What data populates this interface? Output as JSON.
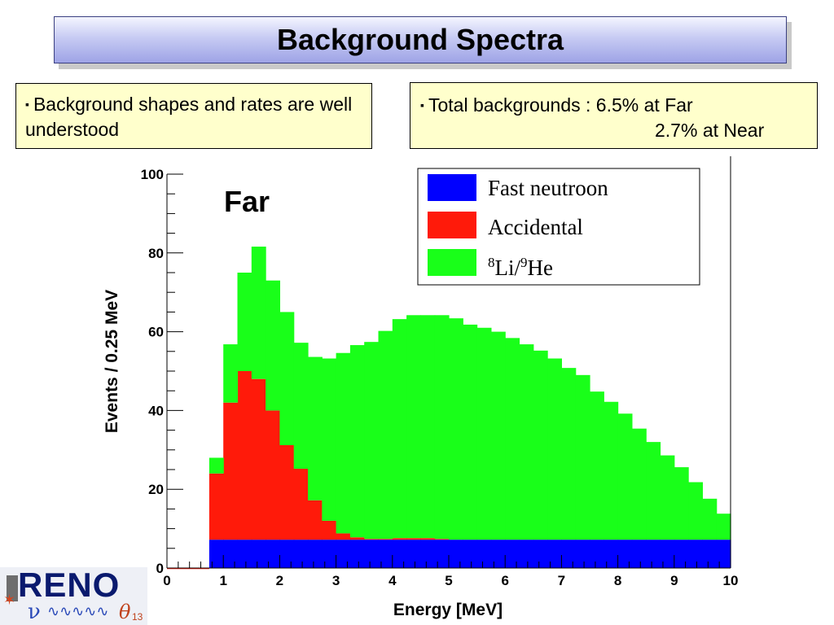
{
  "slide": {
    "title": "Background Spectra",
    "bullet_left": "Background shapes and rates are well understood",
    "bullet_right_line1": "Total backgrounds :   6.5% at Far",
    "bullet_right_line2": "2.7% at Near",
    "bullet_glyph": "▪"
  },
  "logo": {
    "text": "RENO",
    "nu": "ν",
    "wave": "∿∿∿∿∿",
    "theta": "θ",
    "theta_sub": "13"
  },
  "colors": {
    "fast_neutron": "#0000ff",
    "accidental": "#ff1a0a",
    "li9he": "#19ff19",
    "title_bar_top": "#f4f5ff",
    "title_bar_bottom": "#9ea3e6",
    "note_bg": "#ffffcc"
  },
  "chart_data": {
    "type": "area",
    "stacked": true,
    "panel_label": "Far",
    "xlabel": "Energy [MeV]",
    "ylabel": "Events / 0.25 MeV",
    "xlim": [
      0,
      10
    ],
    "ylim": [
      0,
      100
    ],
    "xticks": [
      0,
      1,
      2,
      3,
      4,
      5,
      6,
      7,
      8,
      9,
      10
    ],
    "yticks": [
      0,
      20,
      40,
      60,
      80,
      100
    ],
    "bin_width": 0.25,
    "bin_edges_start": 0.75,
    "legend_position": "top-right",
    "series": [
      {
        "name": "Fast neutroon",
        "legend_label": "Fast neutroon",
        "color": "#0000ff",
        "values": [
          7.2,
          7.2,
          7.2,
          7.2,
          7.2,
          7.2,
          7.2,
          7.2,
          7.2,
          7.2,
          7.2,
          7.2,
          7.2,
          7.2,
          7.2,
          7.2,
          7.2,
          7.2,
          7.2,
          7.2,
          7.2,
          7.2,
          7.2,
          7.2,
          7.2,
          7.2,
          7.2,
          7.2,
          7.2,
          7.2,
          7.2,
          7.2,
          7.2,
          7.2,
          7.2,
          7.2,
          7.2
        ]
      },
      {
        "name": "Accidental",
        "legend_label": "Accidental",
        "color": "#ff1a0a",
        "values": [
          16.8,
          34.8,
          42.8,
          40.8,
          32.8,
          24.0,
          18.0,
          10.0,
          4.8,
          1.6,
          0.6,
          0.2,
          0.2,
          0.4,
          0.4,
          0.4,
          0.2,
          0,
          0,
          0,
          0,
          0,
          0,
          0,
          0,
          0,
          0,
          0,
          0,
          0,
          0,
          0,
          0,
          0,
          0,
          0,
          0
        ]
      },
      {
        "name": "8Li/9He",
        "legend_label_parts": [
          "8",
          "Li/",
          "9",
          "He"
        ],
        "color": "#19ff19",
        "values": [
          4.0,
          14.8,
          25.0,
          33.6,
          33.0,
          33.8,
          32.0,
          36.4,
          41.2,
          45.8,
          48.8,
          50.0,
          52.8,
          55.6,
          56.6,
          56.6,
          56.8,
          56.2,
          54.6,
          53.8,
          52.8,
          51.2,
          49.6,
          48.0,
          46.0,
          43.6,
          41.8,
          37.6,
          35.0,
          32.0,
          28.2,
          24.8,
          21.4,
          18.4,
          14.6,
          10.4,
          6.6
        ]
      }
    ],
    "pre_threshold_line_value": 0
  }
}
